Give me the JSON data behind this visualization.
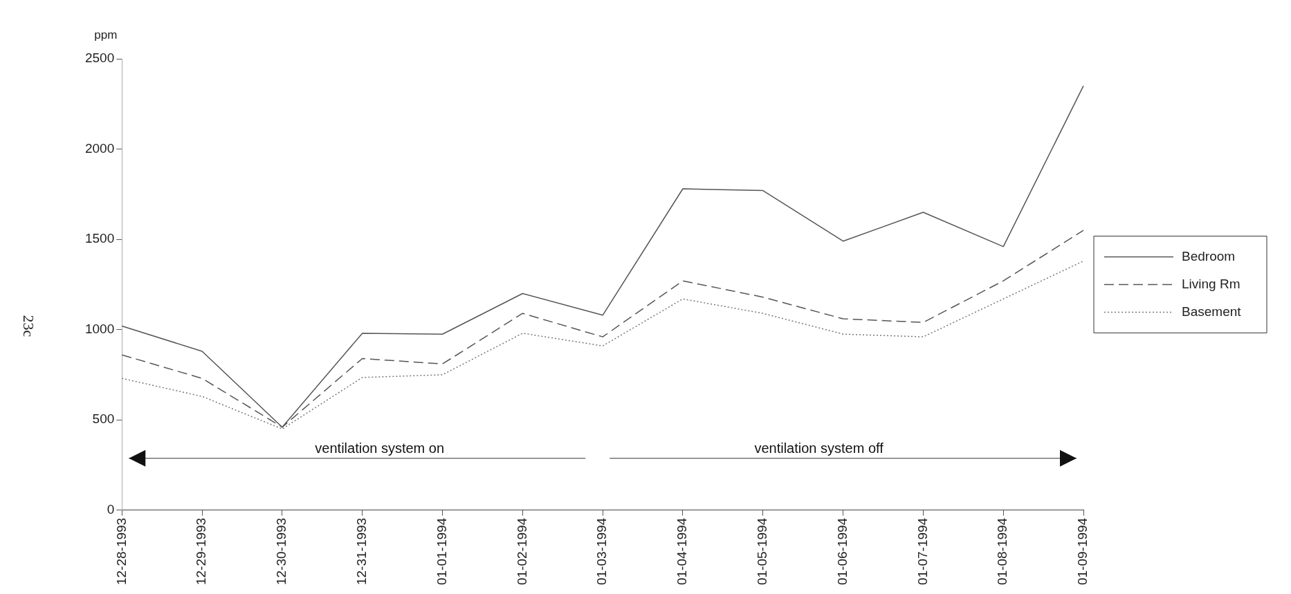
{
  "chart_data": {
    "type": "line",
    "ylabel": "ppm",
    "categories": [
      "12-28-1993",
      "12-29-1993",
      "12-30-1993",
      "12-31-1993",
      "01-01-1994",
      "01-02-1994",
      "01-03-1994",
      "01-04-1994",
      "01-05-1994",
      "01-06-1994",
      "01-07-1994",
      "01-08-1994",
      "01-09-1994"
    ],
    "series": [
      {
        "name": "Bedroom",
        "color": "#555555",
        "line_style": "solid",
        "values": [
          1020,
          880,
          460,
          980,
          975,
          1200,
          1080,
          1780,
          1770,
          1490,
          1650,
          1460,
          2350
        ]
      },
      {
        "name": "Living Rm",
        "color": "#555555",
        "line_style": "dashed",
        "values": [
          860,
          730,
          460,
          840,
          810,
          1090,
          960,
          1270,
          1180,
          1060,
          1040,
          1270,
          1550
        ]
      },
      {
        "name": "Basement",
        "color": "#777777",
        "line_style": "dotted",
        "values": [
          730,
          630,
          450,
          735,
          750,
          980,
          910,
          1170,
          1090,
          975,
          960,
          1170,
          1380
        ]
      }
    ],
    "ylim": [
      0,
      2500
    ],
    "yticks": [
      0,
      500,
      1000,
      1500,
      2000,
      2500
    ],
    "grid": false,
    "legend": "right",
    "marker": "none",
    "annotations": [
      "ventilation system on",
      "ventilation system off",
      "23c"
    ]
  }
}
